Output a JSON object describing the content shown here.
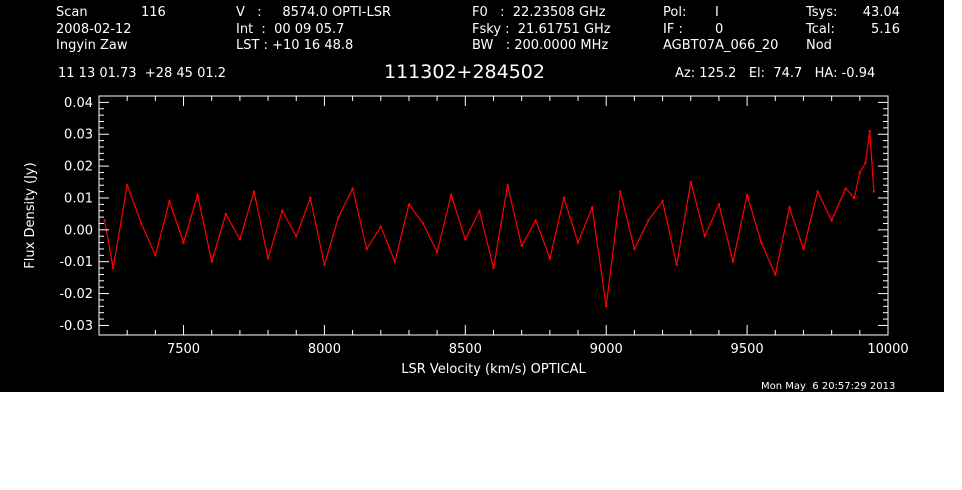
{
  "header": {
    "scan_label": "Scan",
    "scan_value": "116",
    "date": "2008-02-12",
    "observer": "Ingyin Zaw",
    "velocity": "V   :     8574.0 OPTI-LSR",
    "int_time": "Int  :  00 09 05.7",
    "lst": "LST : +10 16 48.8",
    "f0": "F0   :  22.23508 GHz",
    "fsky": "Fsky :  21.61751 GHz",
    "bw": "BW   : 200.0000 MHz",
    "pol_label": "Pol:",
    "pol_value": "I",
    "if_label": "IF :",
    "if_value": "0",
    "project": "AGBT07A_066_20",
    "tsys_label": "Tsys:",
    "tsys_value": "43.04",
    "tcal_label": "Tcal:",
    "tcal_value": "5.16",
    "proc": "Nod",
    "coords": "11 13 01.73  +28 45 01.2",
    "source": "111302+284502",
    "azel": "Az: 125.2   El:  74.7   HA: -0.94"
  },
  "footer": {
    "timestamp": "Mon May  6 20:57:29 2013"
  },
  "colors": {
    "background": "#000000",
    "axes": "#ffffff",
    "trace": "#ff0000"
  },
  "chart_data": {
    "type": "line",
    "xlabel": "LSR Velocity (km/s) OPTICAL",
    "ylabel": "Flux Density (Jy)",
    "xlim": [
      7200,
      10000
    ],
    "ylim": [
      -0.033,
      0.042
    ],
    "xticks": [
      7500,
      8000,
      8500,
      9000,
      9500,
      10000
    ],
    "yticks": [
      -0.03,
      -0.02,
      -0.01,
      0.0,
      0.01,
      0.02,
      0.03,
      0.04
    ],
    "ytick_labels": [
      "-0.03",
      "-0.02",
      "-0.01",
      "0.00",
      "0.01",
      "0.02",
      "0.03",
      "0.04"
    ],
    "grid": false,
    "series": [
      {
        "color": "#ff0000",
        "x": [
          7220,
          7250,
          7300,
          7350,
          7400,
          7450,
          7500,
          7550,
          7600,
          7650,
          7700,
          7750,
          7800,
          7850,
          7900,
          7950,
          8000,
          8050,
          8100,
          8150,
          8200,
          8250,
          8300,
          8350,
          8400,
          8450,
          8500,
          8550,
          8600,
          8650,
          8700,
          8750,
          8800,
          8850,
          8900,
          8950,
          9000,
          9050,
          9100,
          9150,
          9200,
          9250,
          9300,
          9350,
          9400,
          9450,
          9500,
          9550,
          9600,
          9650,
          9700,
          9750,
          9800,
          9850,
          9880,
          9900,
          9920,
          9935,
          9950
        ],
        "y": [
          0.003,
          -0.012,
          0.014,
          0.002,
          -0.008,
          0.009,
          -0.004,
          0.011,
          -0.01,
          0.005,
          -0.003,
          0.012,
          -0.009,
          0.006,
          -0.002,
          0.01,
          -0.011,
          0.004,
          0.013,
          -0.006,
          0.001,
          -0.01,
          0.008,
          0.002,
          -0.007,
          0.011,
          -0.003,
          0.006,
          -0.012,
          0.014,
          -0.005,
          0.003,
          -0.009,
          0.01,
          -0.004,
          0.007,
          -0.024,
          0.012,
          -0.006,
          0.003,
          0.009,
          -0.011,
          0.015,
          -0.002,
          0.008,
          -0.01,
          0.011,
          -0.004,
          -0.014,
          0.007,
          -0.006,
          0.012,
          0.003,
          0.013,
          0.01,
          0.018,
          0.021,
          0.031,
          0.012
        ]
      }
    ]
  }
}
